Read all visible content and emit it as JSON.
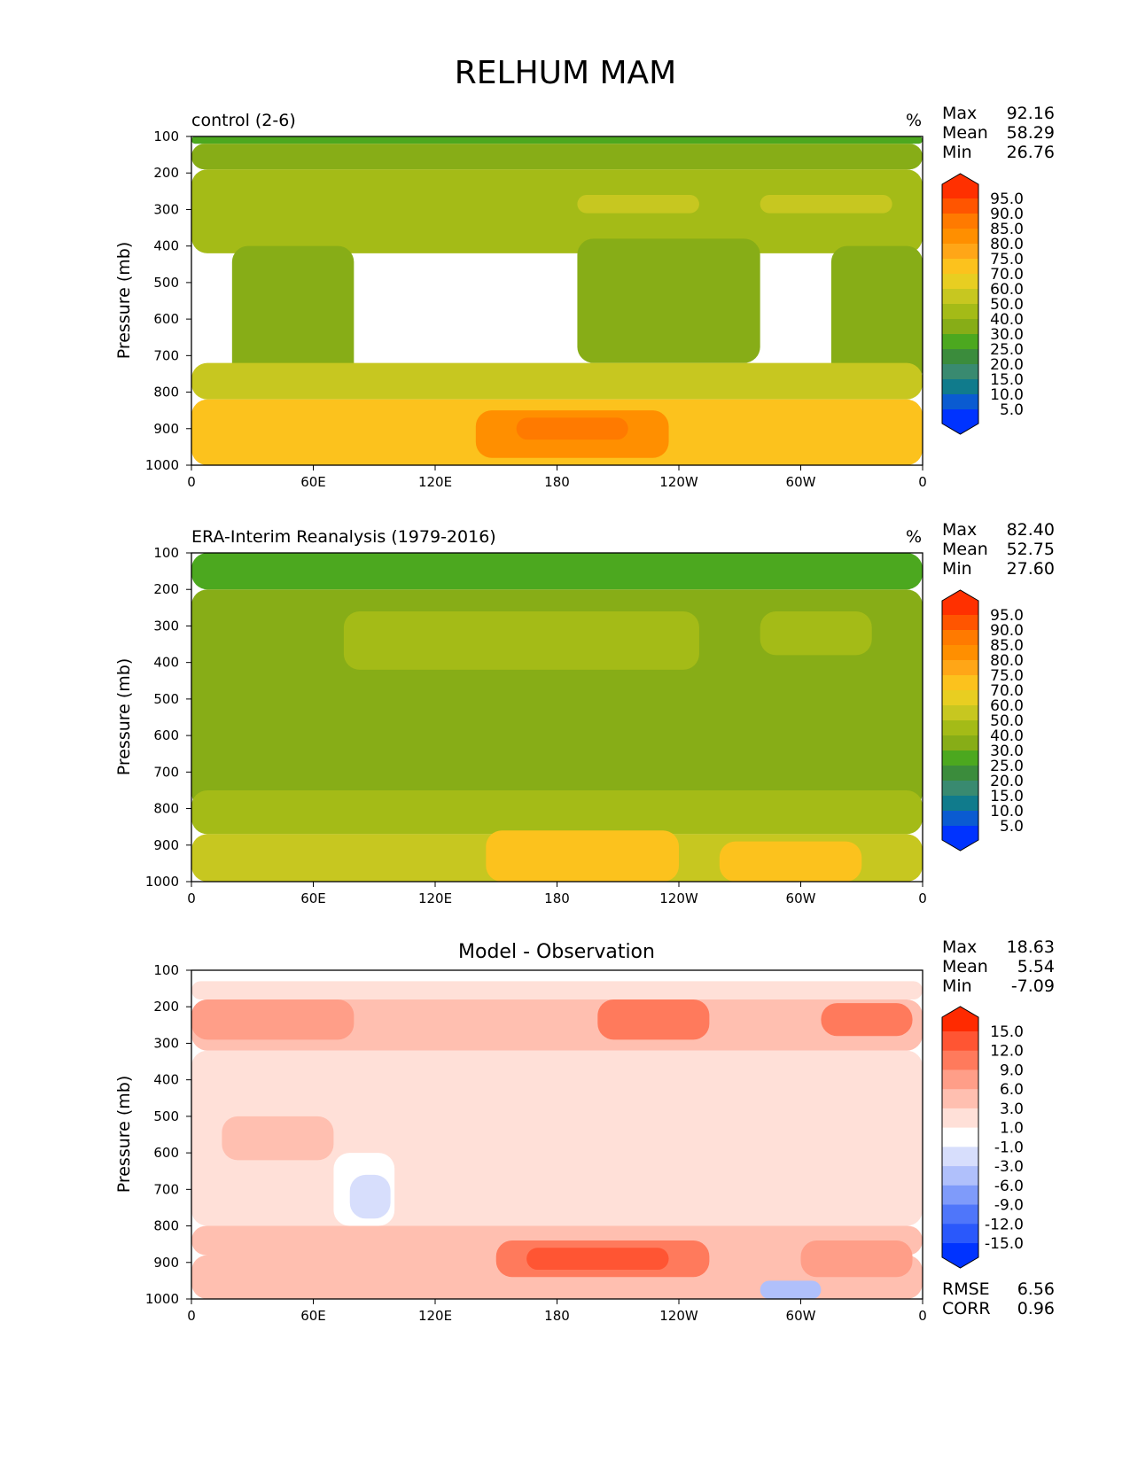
{
  "figure": {
    "title": "RELHUM MAM"
  },
  "chart_data": [
    {
      "type": "heatmap",
      "title": "control (2-6)",
      "units": "%",
      "xlabel": "",
      "ylabel": "Pressure (mb)",
      "xticks": [
        "0",
        "60E",
        "120E",
        "180",
        "120W",
        "60W",
        "0"
      ],
      "yticks": [
        "100",
        "200",
        "300",
        "400",
        "500",
        "600",
        "700",
        "800",
        "900",
        "1000"
      ],
      "ylim": [
        1000,
        100
      ],
      "stats": [
        {
          "label": "Max",
          "value": "92.16"
        },
        {
          "label": "Mean",
          "value": "58.29"
        },
        {
          "label": "Min",
          "value": "26.76"
        }
      ],
      "colorbar": {
        "levels": [
          "95.0",
          "90.0",
          "85.0",
          "80.0",
          "75.0",
          "70.0",
          "60.0",
          "50.0",
          "40.0",
          "30.0",
          "25.0",
          "20.0",
          "15.0",
          "10.0",
          "5.0"
        ],
        "colors": [
          "#ff3000",
          "#ff5500",
          "#ff7a00",
          "#ff8f00",
          "#ffa617",
          "#fcc21d",
          "#e8ce21",
          "#c7c720",
          "#a4bb17",
          "#87ad17",
          "#4ca81f",
          "#3b8c3c",
          "#398a70",
          "#107b8c",
          "#0a5bd1",
          "#0033ff"
        ]
      },
      "regions": [
        {
          "pressure_range": [
            100,
            120
          ],
          "lon_range": [
            0,
            360
          ],
          "value_level": "30.0"
        },
        {
          "pressure_range": [
            120,
            190
          ],
          "lon_range": [
            0,
            360
          ],
          "value_level": "40.0"
        },
        {
          "pressure_range": [
            190,
            420
          ],
          "lon_range": [
            0,
            360
          ],
          "value_level": "50.0"
        },
        {
          "pressure_range": [
            260,
            310
          ],
          "lon_range": [
            190,
            250
          ],
          "value_level": "60.0"
        },
        {
          "pressure_range": [
            260,
            310
          ],
          "lon_range": [
            280,
            345
          ],
          "value_level": "60.0"
        },
        {
          "pressure_range": [
            400,
            780
          ],
          "lon_range": [
            20,
            80
          ],
          "value_level": "40.0"
        },
        {
          "pressure_range": [
            380,
            720
          ],
          "lon_range": [
            190,
            280
          ],
          "value_level": "40.0"
        },
        {
          "pressure_range": [
            400,
            780
          ],
          "lon_range": [
            315,
            360
          ],
          "value_level": "40.0"
        },
        {
          "pressure_range": [
            720,
            820
          ],
          "lon_range": [
            0,
            360
          ],
          "value_level": "60.0"
        },
        {
          "pressure_range": [
            820,
            1000
          ],
          "lon_range": [
            0,
            360
          ],
          "value_level": "75.0"
        },
        {
          "pressure_range": [
            850,
            980
          ],
          "lon_range": [
            140,
            235
          ],
          "value_level": "85.0"
        },
        {
          "pressure_range": [
            870,
            930
          ],
          "lon_range": [
            160,
            215
          ],
          "value_level": "90.0"
        }
      ]
    },
    {
      "type": "heatmap",
      "title": "ERA-Interim Reanalysis (1979-2016)",
      "units": "%",
      "xlabel": "",
      "ylabel": "Pressure (mb)",
      "xticks": [
        "0",
        "60E",
        "120E",
        "180",
        "120W",
        "60W",
        "0"
      ],
      "yticks": [
        "100",
        "200",
        "300",
        "400",
        "500",
        "600",
        "700",
        "800",
        "900",
        "1000"
      ],
      "ylim": [
        1000,
        100
      ],
      "stats": [
        {
          "label": "Max",
          "value": "82.40"
        },
        {
          "label": "Mean",
          "value": "52.75"
        },
        {
          "label": "Min",
          "value": "27.60"
        }
      ],
      "colorbar": {
        "levels": [
          "95.0",
          "90.0",
          "85.0",
          "80.0",
          "75.0",
          "70.0",
          "60.0",
          "50.0",
          "40.0",
          "30.0",
          "25.0",
          "20.0",
          "15.0",
          "10.0",
          "5.0"
        ],
        "colors": [
          "#ff3000",
          "#ff5500",
          "#ff7a00",
          "#ff8f00",
          "#ffa617",
          "#fcc21d",
          "#e8ce21",
          "#c7c720",
          "#a4bb17",
          "#87ad17",
          "#4ca81f",
          "#3b8c3c",
          "#398a70",
          "#107b8c",
          "#0a5bd1",
          "#0033ff"
        ]
      },
      "regions": [
        {
          "pressure_range": [
            100,
            200
          ],
          "lon_range": [
            0,
            360
          ],
          "value_level": "30.0"
        },
        {
          "pressure_range": [
            200,
            800
          ],
          "lon_range": [
            0,
            360
          ],
          "value_level": "40.0"
        },
        {
          "pressure_range": [
            260,
            420
          ],
          "lon_range": [
            75,
            250
          ],
          "value_level": "50.0"
        },
        {
          "pressure_range": [
            260,
            380
          ],
          "lon_range": [
            280,
            335
          ],
          "value_level": "50.0"
        },
        {
          "pressure_range": [
            750,
            870
          ],
          "lon_range": [
            0,
            360
          ],
          "value_level": "50.0"
        },
        {
          "pressure_range": [
            870,
            1000
          ],
          "lon_range": [
            0,
            360
          ],
          "value_level": "60.0"
        },
        {
          "pressure_range": [
            860,
            1000
          ],
          "lon_range": [
            145,
            240
          ],
          "value_level": "75.0"
        },
        {
          "pressure_range": [
            890,
            1000
          ],
          "lon_range": [
            260,
            330
          ],
          "value_level": "75.0"
        }
      ]
    },
    {
      "type": "heatmap",
      "title": "Model - Observation",
      "units": "",
      "xlabel": "",
      "ylabel": "Pressure (mb)",
      "xticks": [
        "0",
        "60E",
        "120E",
        "180",
        "120W",
        "60W",
        "0"
      ],
      "yticks": [
        "100",
        "200",
        "300",
        "400",
        "500",
        "600",
        "700",
        "800",
        "900",
        "1000"
      ],
      "ylim": [
        1000,
        100
      ],
      "stats": [
        {
          "label": "Max",
          "value": "18.63"
        },
        {
          "label": "Mean",
          "value": "5.54"
        },
        {
          "label": "Min",
          "value": "-7.09"
        }
      ],
      "extra_stats": [
        {
          "label": "RMSE",
          "value": "6.56"
        },
        {
          "label": "CORR",
          "value": "0.96"
        }
      ],
      "colorbar": {
        "levels": [
          "15.0",
          "12.0",
          "9.0",
          "6.0",
          "3.0",
          "1.0",
          "-1.0",
          "-3.0",
          "-6.0",
          "-9.0",
          "-12.0",
          "-15.0"
        ],
        "colors": [
          "#ff2a00",
          "#ff5533",
          "#ff7a5c",
          "#ff9e88",
          "#ffbfb0",
          "#ffe0d8",
          "#ffffff",
          "#d7defc",
          "#b0c0fb",
          "#7f9bfa",
          "#4f76fa",
          "#2a58fb",
          "#0033ff"
        ]
      },
      "regions": [
        {
          "pressure_range": [
            100,
            130
          ],
          "lon_range": [
            0,
            360
          ],
          "value_level": "1.0"
        },
        {
          "pressure_range": [
            130,
            180
          ],
          "lon_range": [
            0,
            360
          ],
          "value_level": "3.0"
        },
        {
          "pressure_range": [
            180,
            320
          ],
          "lon_range": [
            0,
            360
          ],
          "value_level": "6.0"
        },
        {
          "pressure_range": [
            180,
            290
          ],
          "lon_range": [
            0,
            80
          ],
          "value_level": "9.0"
        },
        {
          "pressure_range": [
            180,
            290
          ],
          "lon_range": [
            200,
            255
          ],
          "value_level": "12.0"
        },
        {
          "pressure_range": [
            190,
            280
          ],
          "lon_range": [
            310,
            355
          ],
          "value_level": "12.0"
        },
        {
          "pressure_range": [
            320,
            800
          ],
          "lon_range": [
            0,
            360
          ],
          "value_level": "3.0"
        },
        {
          "pressure_range": [
            500,
            620
          ],
          "lon_range": [
            15,
            70
          ],
          "value_level": "6.0"
        },
        {
          "pressure_range": [
            600,
            800
          ],
          "lon_range": [
            70,
            100
          ],
          "value_level": "1.0"
        },
        {
          "pressure_range": [
            660,
            780
          ],
          "lon_range": [
            78,
            98
          ],
          "value_level": "-1.0"
        },
        {
          "pressure_range": [
            800,
            880
          ],
          "lon_range": [
            0,
            360
          ],
          "value_level": "6.0"
        },
        {
          "pressure_range": [
            880,
            1000
          ],
          "lon_range": [
            0,
            360
          ],
          "value_level": "6.0"
        },
        {
          "pressure_range": [
            840,
            940
          ],
          "lon_range": [
            150,
            255
          ],
          "value_level": "12.0"
        },
        {
          "pressure_range": [
            860,
            920
          ],
          "lon_range": [
            165,
            235
          ],
          "value_level": "15.0"
        },
        {
          "pressure_range": [
            840,
            940
          ],
          "lon_range": [
            300,
            355
          ],
          "value_level": "9.0"
        },
        {
          "pressure_range": [
            950,
            1000
          ],
          "lon_range": [
            280,
            310
          ],
          "value_level": "-3.0"
        }
      ]
    }
  ]
}
